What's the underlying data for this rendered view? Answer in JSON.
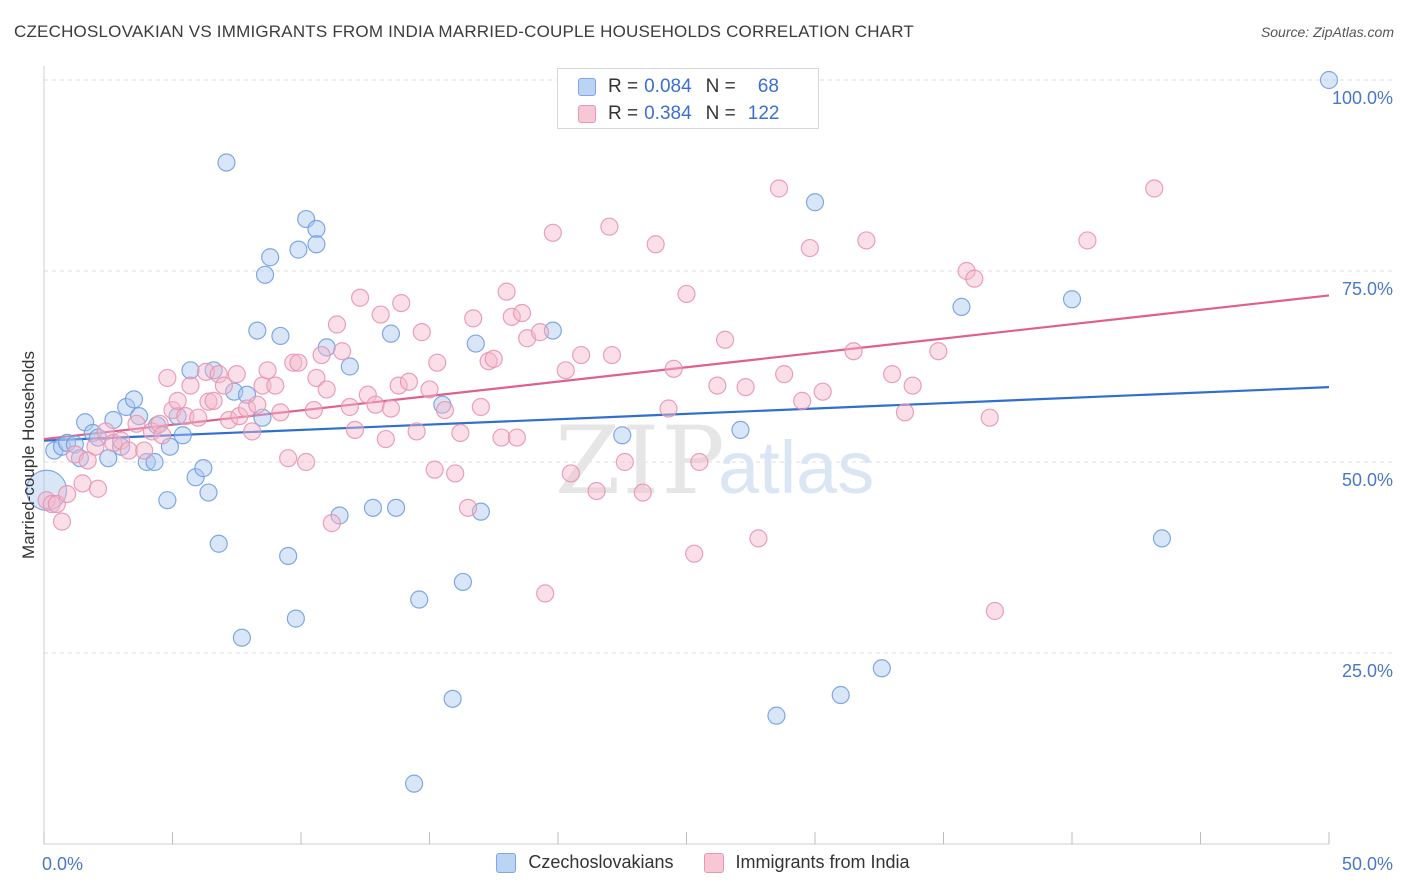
{
  "title": "CZECHOSLOVAKIAN VS IMMIGRANTS FROM INDIA MARRIED-COUPLE HOUSEHOLDS CORRELATION CHART",
  "source": "Source: ZipAtlas.com",
  "watermark": {
    "zip": "ZIP",
    "atlas": "atlas"
  },
  "legend_top": [
    {
      "r_label": "R =",
      "r_value": "0.084",
      "n_label": "N =",
      "n_value": "68",
      "color": "#aac8f0"
    },
    {
      "r_label": "R =",
      "r_value": "0.384",
      "n_label": "N =",
      "n_value": "122",
      "color": "#f5b8cb"
    }
  ],
  "legend_bottom": [
    {
      "label": "Czechoslovakians",
      "color": "#aac8f0"
    },
    {
      "label": "Immigrants from India",
      "color": "#f5b8cb"
    }
  ],
  "chart_data": {
    "type": "scatter",
    "title": "CZECHOSLOVAKIAN VS IMMIGRANTS FROM INDIA MARRIED-COUPLE HOUSEHOLDS CORRELATION CHART",
    "xlabel": "",
    "ylabel": "Married-couple Households",
    "xlim": [
      0,
      50
    ],
    "ylim": [
      0,
      100
    ],
    "x_tick_labels": [
      {
        "value": 0,
        "label": "0.0%"
      },
      {
        "value": 50,
        "label": "50.0%"
      }
    ],
    "y_tick_labels": [
      {
        "value": 100,
        "label": "100.0%"
      },
      {
        "value": 75,
        "label": "75.0%"
      },
      {
        "value": 50,
        "label": "50.0%"
      },
      {
        "value": 25,
        "label": "25.0%"
      }
    ],
    "x_minor_ticks": [
      0,
      5,
      10,
      15,
      20,
      25,
      30,
      35,
      40,
      45,
      50
    ],
    "grid": true,
    "series": [
      {
        "name": "Czechoslovakians",
        "color": "#6a9be0",
        "fill": "#aac8f0",
        "trend": {
          "x": [
            0,
            50
          ],
          "y": [
            52.8,
            59.8
          ],
          "color": "#2f6fd1"
        },
        "points": [
          [
            0.1,
            46.3
          ],
          [
            0.4,
            51.5
          ],
          [
            0.7,
            52
          ],
          [
            0.9,
            52.5
          ],
          [
            1.2,
            52.3
          ],
          [
            1.4,
            50.5
          ],
          [
            1.6,
            55.2
          ],
          [
            1.9,
            53.8
          ],
          [
            2.1,
            53.2
          ],
          [
            2.5,
            50.5
          ],
          [
            2.7,
            55.5
          ],
          [
            3.0,
            52
          ],
          [
            3.2,
            57.2
          ],
          [
            3.5,
            58.2
          ],
          [
            3.7,
            56
          ],
          [
            4.0,
            50
          ],
          [
            4.3,
            50
          ],
          [
            4.4,
            54.8
          ],
          [
            4.8,
            45
          ],
          [
            4.9,
            52
          ],
          [
            5.2,
            56
          ],
          [
            5.4,
            53.5
          ],
          [
            5.7,
            62
          ],
          [
            5.9,
            48
          ],
          [
            6.2,
            49.2
          ],
          [
            6.4,
            46
          ],
          [
            6.6,
            62
          ],
          [
            6.8,
            39.3
          ],
          [
            7.1,
            89.2
          ],
          [
            7.4,
            59.2
          ],
          [
            7.7,
            27
          ],
          [
            7.9,
            58.8
          ],
          [
            8.3,
            67.2
          ],
          [
            8.5,
            55.8
          ],
          [
            8.6,
            74.5
          ],
          [
            8.8,
            76.8
          ],
          [
            9.2,
            66.5
          ],
          [
            9.5,
            37.7
          ],
          [
            9.8,
            29.5
          ],
          [
            9.9,
            77.8
          ],
          [
            10.2,
            81.8
          ],
          [
            10.6,
            80.5
          ],
          [
            10.6,
            78.5
          ],
          [
            11.0,
            65
          ],
          [
            11.5,
            43
          ],
          [
            11.9,
            62.5
          ],
          [
            12.8,
            44
          ],
          [
            13.5,
            66.8
          ],
          [
            13.7,
            44
          ],
          [
            14.4,
            7.9
          ],
          [
            14.6,
            32
          ],
          [
            15.5,
            57.5
          ],
          [
            15.9,
            19
          ],
          [
            16.3,
            34.3
          ],
          [
            16.8,
            65.5
          ],
          [
            17.0,
            43.5
          ],
          [
            19.8,
            67.2
          ],
          [
            22.5,
            53.5
          ],
          [
            27.1,
            54.2
          ],
          [
            28.5,
            16.8
          ],
          [
            30.0,
            84
          ],
          [
            31.0,
            19.5
          ],
          [
            32.6,
            23
          ],
          [
            35.7,
            70.3
          ],
          [
            40.0,
            71.3
          ],
          [
            43.5,
            40
          ],
          [
            50.0,
            100
          ]
        ]
      },
      {
        "name": "Immigrants from India",
        "color": "#e890ad",
        "fill": "#f5b8cb",
        "trend": {
          "x": [
            0,
            50
          ],
          "y": [
            53.0,
            71.8
          ],
          "color": "#e0608a"
        },
        "points": [
          [
            0.1,
            45
          ],
          [
            0.3,
            44.5
          ],
          [
            0.5,
            44.5
          ],
          [
            0.7,
            42.2
          ],
          [
            0.9,
            45.8
          ],
          [
            1.2,
            51
          ],
          [
            1.5,
            47.2
          ],
          [
            1.7,
            50.2
          ],
          [
            2.0,
            52
          ],
          [
            2.1,
            46.5
          ],
          [
            2.4,
            54
          ],
          [
            2.7,
            52.5
          ],
          [
            3.0,
            52.8
          ],
          [
            3.3,
            51.5
          ],
          [
            3.6,
            55
          ],
          [
            3.9,
            51.5
          ],
          [
            4.2,
            54
          ],
          [
            4.5,
            55
          ],
          [
            4.6,
            53.5
          ],
          [
            4.8,
            61
          ],
          [
            5.0,
            56.8
          ],
          [
            5.2,
            58
          ],
          [
            5.5,
            56
          ],
          [
            5.7,
            60
          ],
          [
            6.0,
            55.8
          ],
          [
            6.3,
            61.8
          ],
          [
            6.4,
            57.9
          ],
          [
            6.6,
            58
          ],
          [
            6.8,
            61.5
          ],
          [
            7.0,
            60
          ],
          [
            7.2,
            55.5
          ],
          [
            7.5,
            61.5
          ],
          [
            7.6,
            56
          ],
          [
            7.9,
            57
          ],
          [
            8.1,
            54
          ],
          [
            8.3,
            57.5
          ],
          [
            8.5,
            60
          ],
          [
            8.7,
            62
          ],
          [
            9.0,
            60
          ],
          [
            9.2,
            56.5
          ],
          [
            9.5,
            50.5
          ],
          [
            9.7,
            63
          ],
          [
            9.9,
            63
          ],
          [
            10.2,
            50
          ],
          [
            10.5,
            56.8
          ],
          [
            10.6,
            61
          ],
          [
            10.8,
            64
          ],
          [
            11.0,
            59.5
          ],
          [
            11.2,
            42
          ],
          [
            11.4,
            68
          ],
          [
            11.6,
            64.5
          ],
          [
            11.9,
            57.2
          ],
          [
            12.1,
            54.2
          ],
          [
            12.3,
            71.5
          ],
          [
            12.6,
            58.8
          ],
          [
            12.9,
            57.5
          ],
          [
            13.1,
            69.3
          ],
          [
            13.3,
            53
          ],
          [
            13.5,
            57
          ],
          [
            13.8,
            60
          ],
          [
            13.9,
            70.8
          ],
          [
            14.2,
            60.5
          ],
          [
            14.5,
            54
          ],
          [
            14.7,
            67
          ],
          [
            15.0,
            59.5
          ],
          [
            15.2,
            49
          ],
          [
            15.3,
            63
          ],
          [
            15.6,
            56.8
          ],
          [
            16.0,
            48.5
          ],
          [
            16.2,
            53.8
          ],
          [
            16.5,
            44
          ],
          [
            16.7,
            68.8
          ],
          [
            17.0,
            57.2
          ],
          [
            17.3,
            63.2
          ],
          [
            17.5,
            63.5
          ],
          [
            17.8,
            53.2
          ],
          [
            18.0,
            72.3
          ],
          [
            18.2,
            69
          ],
          [
            18.4,
            53.2
          ],
          [
            18.6,
            69.5
          ],
          [
            18.8,
            66.2
          ],
          [
            19.3,
            67
          ],
          [
            19.5,
            32.8
          ],
          [
            19.8,
            80
          ],
          [
            20.3,
            62
          ],
          [
            20.5,
            48.5
          ],
          [
            20.9,
            64
          ],
          [
            21.5,
            46.2
          ],
          [
            22.0,
            80.8
          ],
          [
            22.1,
            64
          ],
          [
            22.6,
            50
          ],
          [
            23.3,
            46
          ],
          [
            23.8,
            78.5
          ],
          [
            24.3,
            57
          ],
          [
            24.5,
            62.2
          ],
          [
            25.0,
            72
          ],
          [
            25.3,
            38
          ],
          [
            25.5,
            50
          ],
          [
            26.2,
            60
          ],
          [
            26.5,
            66
          ],
          [
            27.3,
            59.8
          ],
          [
            27.8,
            40
          ],
          [
            28.6,
            85.8
          ],
          [
            28.8,
            61.5
          ],
          [
            29.5,
            58
          ],
          [
            29.8,
            78
          ],
          [
            30.3,
            59.2
          ],
          [
            31.5,
            64.5
          ],
          [
            32.0,
            79
          ],
          [
            33.0,
            61.5
          ],
          [
            33.5,
            56.5
          ],
          [
            33.8,
            60
          ],
          [
            34.8,
            64.5
          ],
          [
            35.9,
            75
          ],
          [
            36.2,
            74
          ],
          [
            36.8,
            55.8
          ],
          [
            37.0,
            30.5
          ],
          [
            40.6,
            79
          ],
          [
            43.2,
            85.8
          ]
        ]
      }
    ]
  }
}
